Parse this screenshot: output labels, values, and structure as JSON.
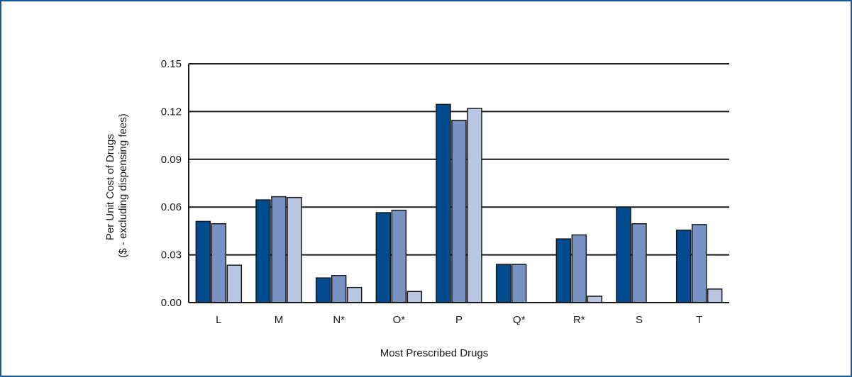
{
  "chart_data": {
    "type": "bar",
    "title": "",
    "xlabel": "Most Prescribed Drugs",
    "ylabel": [
      "Per Unit Cost of Drugs",
      "($ - excluding dispensing fees)"
    ],
    "categories": [
      "L",
      "M",
      "N*",
      "O*",
      "P",
      "Q*",
      "R*",
      "S",
      "T"
    ],
    "ylim": [
      0,
      0.15
    ],
    "yticks": [
      "0.00",
      "0.03",
      "0.06",
      "0.09",
      "0.12",
      "0.15"
    ],
    "grid": true,
    "series": [
      {
        "values": [
          0.051,
          0.0645,
          0.0155,
          0.0565,
          0.1245,
          0.024,
          0.04,
          0.06,
          0.0455
        ],
        "color": "#004b8d"
      },
      {
        "values": [
          0.0495,
          0.0665,
          0.017,
          0.058,
          0.1145,
          0.024,
          0.0425,
          0.0495,
          0.049
        ],
        "color": "#7693c3"
      },
      {
        "values": [
          0.0235,
          0.066,
          0.0095,
          0.007,
          0.122,
          null,
          0.004,
          null,
          0.0085
        ],
        "color": "#bac7e3"
      }
    ]
  }
}
